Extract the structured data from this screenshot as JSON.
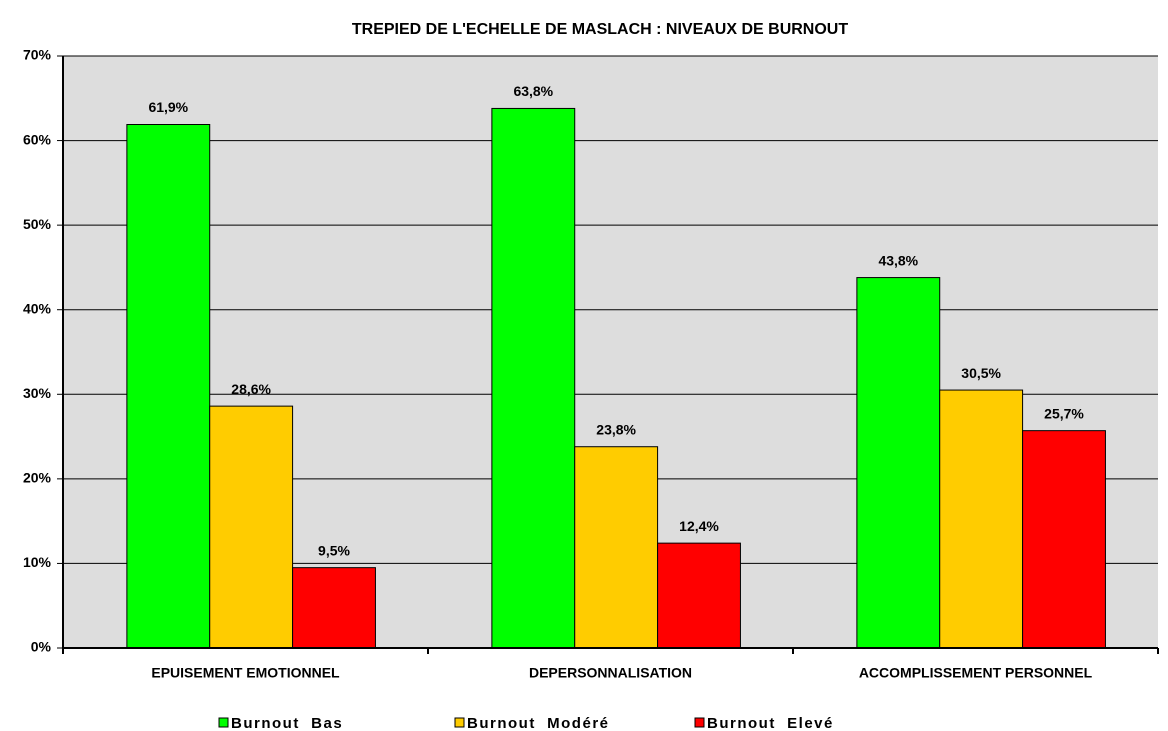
{
  "chart_data": {
    "type": "bar",
    "title": "TREPIED DE L'ECHELLE DE MASLACH : NIVEAUX DE BURNOUT",
    "categories": [
      "EPUISEMENT EMOTIONNEL",
      "DEPERSONNALISATION",
      "ACCOMPLISSEMENT PERSONNEL"
    ],
    "series": [
      {
        "name": "Burnout  Bas",
        "color": "#00ff00",
        "values": [
          61.9,
          63.8,
          43.8
        ],
        "value_labels": [
          "61,9%",
          "63,8%",
          "43,8%"
        ]
      },
      {
        "name": "Burnout  Modéré",
        "color": "#ffcc00",
        "values": [
          28.6,
          23.8,
          30.5
        ],
        "value_labels": [
          "28,6%",
          "23,8%",
          "30,5%"
        ]
      },
      {
        "name": "Burnout  Elevé",
        "color": "#ff0000",
        "values": [
          9.5,
          12.4,
          25.7
        ],
        "value_labels": [
          "9,5%",
          "12,4%",
          "25,7%"
        ]
      }
    ],
    "ylim": [
      0,
      70
    ],
    "yticks": [
      {
        "value": 0,
        "label": "0%"
      },
      {
        "value": 10,
        "label": "10%"
      },
      {
        "value": 20,
        "label": "20%"
      },
      {
        "value": 30,
        "label": "30%"
      },
      {
        "value": 40,
        "label": "40%"
      },
      {
        "value": 50,
        "label": "50%"
      },
      {
        "value": 60,
        "label": "60%"
      },
      {
        "value": 70,
        "label": "70%"
      }
    ],
    "grid": true,
    "legend": "bottom"
  }
}
